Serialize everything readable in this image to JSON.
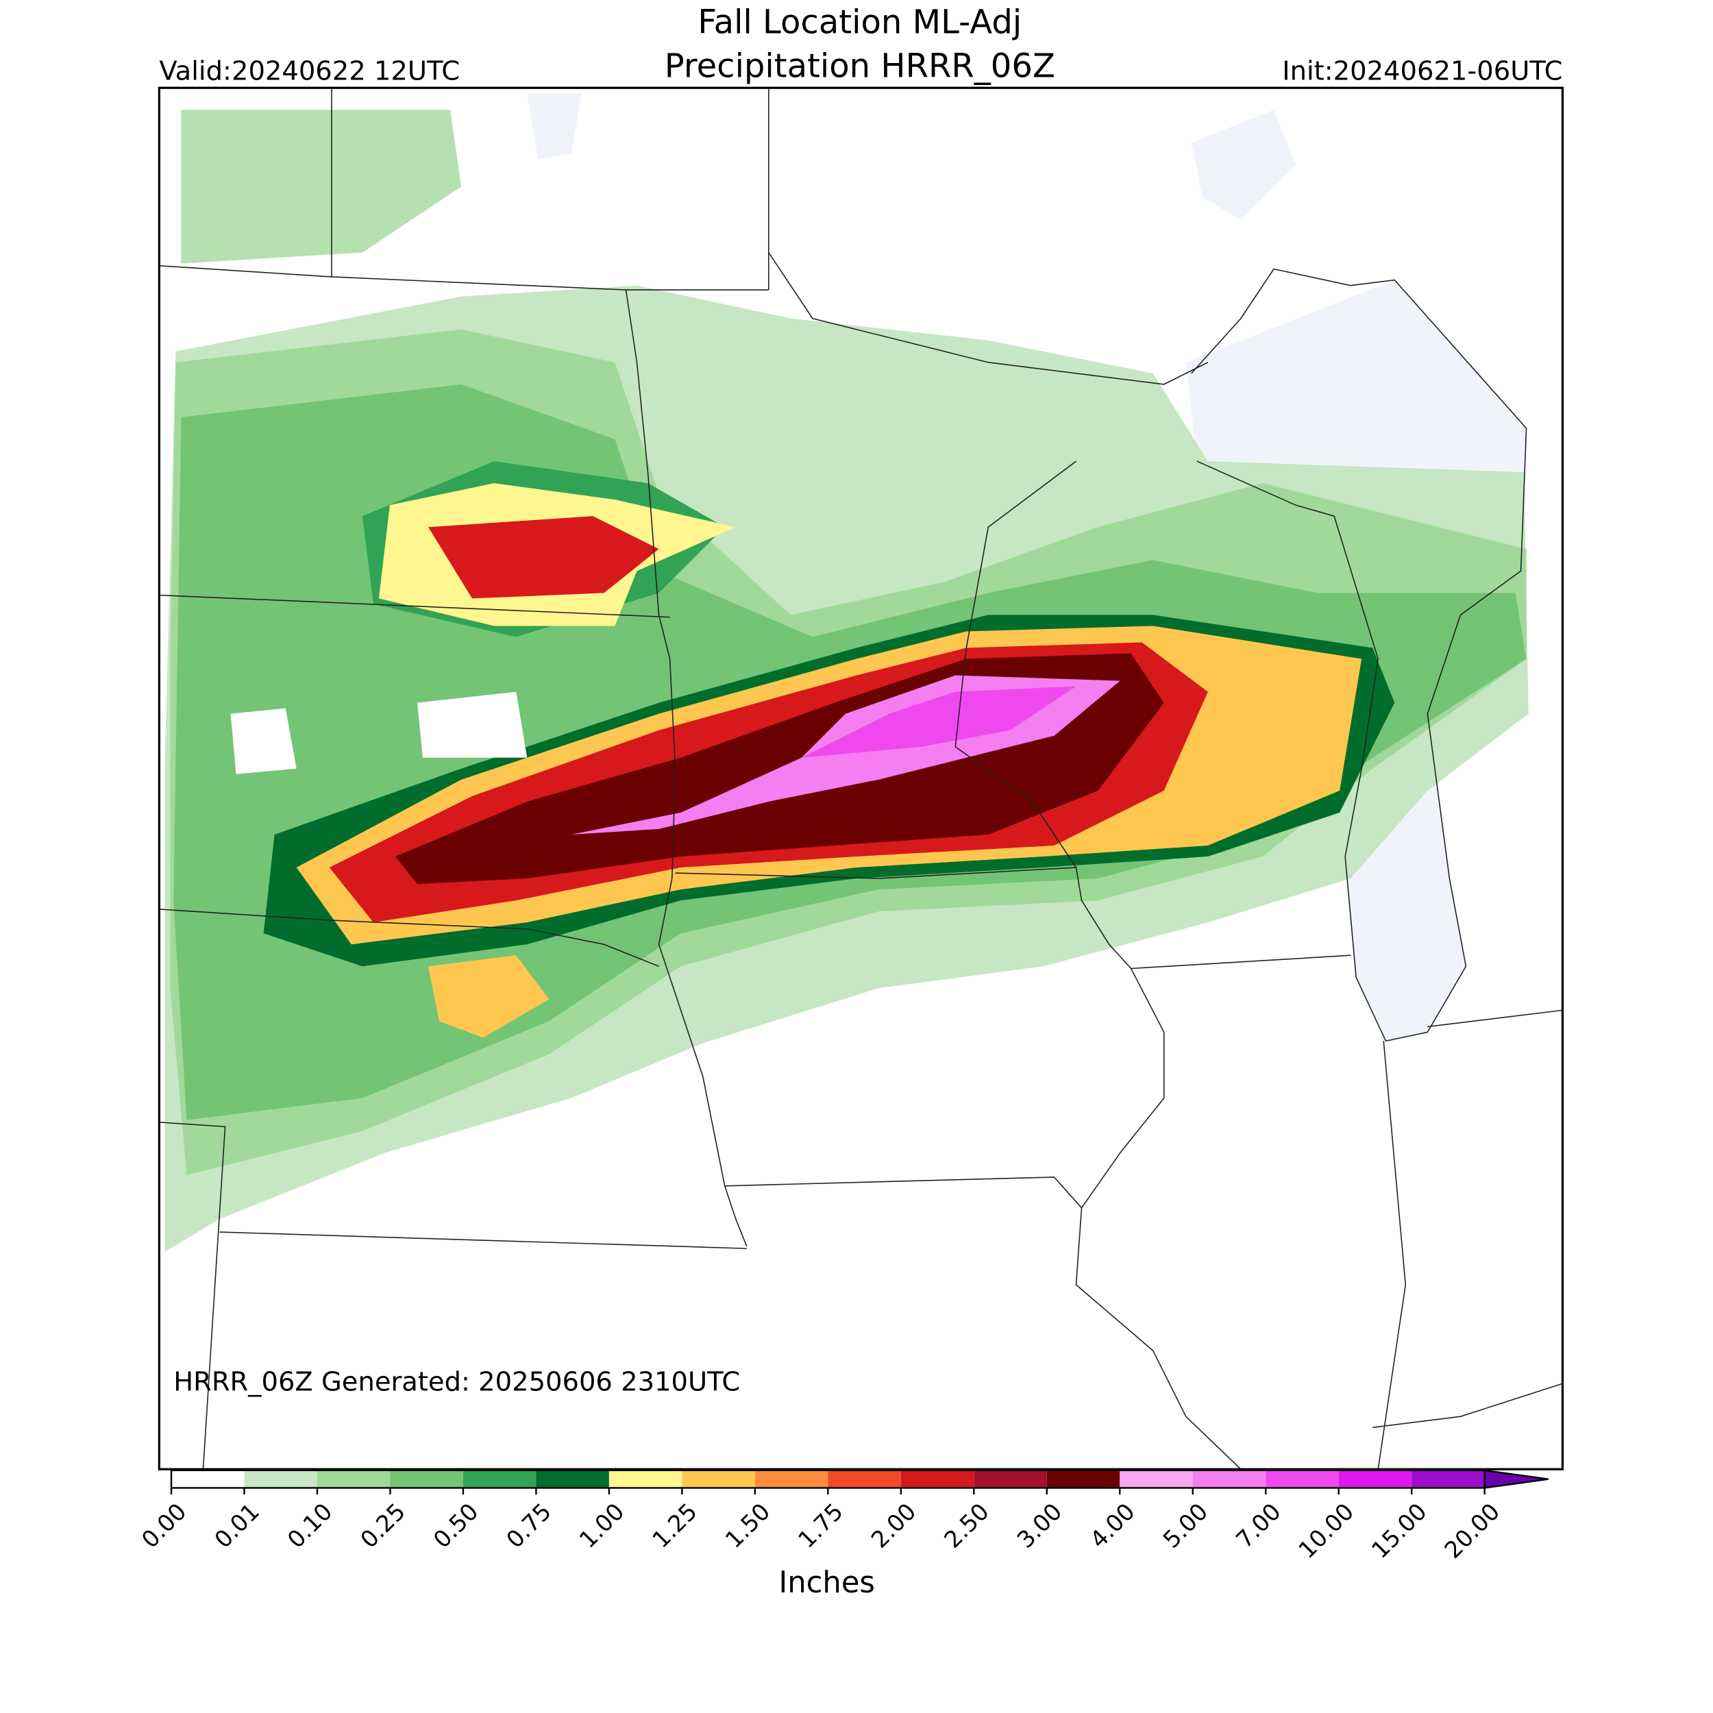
{
  "header": {
    "title": "Fall Location ML-Adj",
    "subtitle": "Precipitation HRRR_06Z",
    "valid": "Valid:20240622 12UTC",
    "init": "Init:20240621-06UTC"
  },
  "map": {
    "footnote": "HRRR_06Z Generated: 20250606 2310UTC"
  },
  "colorbar": {
    "label": "Inches",
    "ticks": [
      {
        "value": 0,
        "label": "0.00"
      },
      {
        "value": 0.01,
        "label": "0.01"
      },
      {
        "value": 0.1,
        "label": "0.10"
      },
      {
        "value": 0.25,
        "label": "0.25"
      },
      {
        "value": 0.5,
        "label": "0.50"
      },
      {
        "value": 0.75,
        "label": "0.75"
      },
      {
        "value": 1,
        "label": "1.00"
      },
      {
        "value": 1.25,
        "label": "1.25"
      },
      {
        "value": 1.5,
        "label": "1.50"
      },
      {
        "value": 1.75,
        "label": "1.75"
      },
      {
        "value": 2,
        "label": "2.00"
      },
      {
        "value": 2.5,
        "label": "2.50"
      },
      {
        "value": 3,
        "label": "3.00"
      },
      {
        "value": 4,
        "label": "4.00"
      },
      {
        "value": 5,
        "label": "5.00"
      },
      {
        "value": 7,
        "label": "7.00"
      },
      {
        "value": 10,
        "label": "10.00"
      },
      {
        "value": 15,
        "label": "15.00"
      },
      {
        "value": 20,
        "label": "20.00"
      }
    ],
    "colors": [
      "#ffffff",
      "#c7e6c3",
      "#a1d99b",
      "#74c476",
      "#31a354",
      "#006d2c",
      "#fff68f",
      "#ffc74f",
      "#ff8c3a",
      "#f2492a",
      "#d7191c",
      "#a50f2c",
      "#6b0000",
      "#f7a6f0",
      "#f57ef0",
      "#f048ef",
      "#e017f0",
      "#9d0bcf"
    ],
    "extend_color": "#6a00a8"
  }
}
